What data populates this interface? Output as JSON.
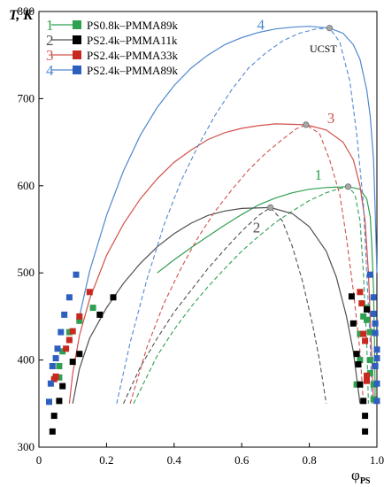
{
  "chart_data": {
    "type": "line",
    "ylabel": "T, K",
    "xlabel_main": "φ",
    "xlabel_sub": "PS",
    "xlim": [
      0,
      1.0
    ],
    "ylim": [
      300,
      800
    ],
    "xticks": [
      "0",
      "0.2",
      "0.4",
      "0.6",
      "0.8",
      "1.0"
    ],
    "yticks": [
      "300",
      "400",
      "500",
      "600",
      "700",
      "800"
    ],
    "annotation": "UCST",
    "legend_position": "top-left",
    "series": [
      {
        "name": "PS0.8k–PMMA89k",
        "number": "1",
        "color": "#2fa050",
        "marker_color": "#2fa050",
        "ucst": {
          "x": 0.915,
          "y": 599
        },
        "binodal": [
          [
            0.35,
            500
          ],
          [
            0.4,
            515
          ],
          [
            0.45,
            529
          ],
          [
            0.5,
            542
          ],
          [
            0.55,
            555
          ],
          [
            0.6,
            567
          ],
          [
            0.65,
            578
          ],
          [
            0.7,
            586
          ],
          [
            0.75,
            592
          ],
          [
            0.8,
            596
          ],
          [
            0.85,
            598
          ],
          [
            0.915,
            599
          ],
          [
            0.95,
            596
          ],
          [
            0.97,
            585
          ],
          [
            0.98,
            565
          ],
          [
            0.985,
            530
          ],
          [
            0.99,
            480
          ],
          [
            0.993,
            420
          ],
          [
            0.995,
            350
          ]
        ],
        "spinodal": [
          [
            0.28,
            350
          ],
          [
            0.35,
            405
          ],
          [
            0.4,
            435
          ],
          [
            0.45,
            461
          ],
          [
            0.5,
            484
          ],
          [
            0.55,
            505
          ],
          [
            0.6,
            525
          ],
          [
            0.65,
            542
          ],
          [
            0.7,
            558
          ],
          [
            0.75,
            571
          ],
          [
            0.8,
            583
          ],
          [
            0.85,
            592
          ],
          [
            0.89,
            597
          ],
          [
            0.915,
            599
          ],
          [
            0.935,
            590
          ],
          [
            0.95,
            560
          ],
          [
            0.96,
            500
          ],
          [
            0.97,
            420
          ],
          [
            0.975,
            350
          ]
        ],
        "points": [
          [
            0.06,
            380
          ],
          [
            0.06,
            393
          ],
          [
            0.07,
            410
          ],
          [
            0.09,
            432
          ],
          [
            0.12,
            445
          ],
          [
            0.16,
            460
          ],
          [
            0.94,
            372
          ],
          [
            0.95,
            400
          ],
          [
            0.95,
            430
          ],
          [
            0.96,
            450
          ],
          [
            0.97,
            460
          ],
          [
            0.97,
            446
          ],
          [
            0.98,
            432
          ],
          [
            0.98,
            400
          ],
          [
            0.98,
            385
          ],
          [
            0.99,
            372
          ],
          [
            0.99,
            355
          ]
        ]
      },
      {
        "name": "PS2.4k–PMMA11k",
        "number": "2",
        "color": "#505050",
        "marker_color": "#000000",
        "ucst": {
          "x": 0.685,
          "y": 575
        },
        "binodal": [
          [
            0.1,
            350
          ],
          [
            0.12,
            390
          ],
          [
            0.15,
            425
          ],
          [
            0.2,
            460
          ],
          [
            0.25,
            488
          ],
          [
            0.3,
            511
          ],
          [
            0.35,
            530
          ],
          [
            0.4,
            545
          ],
          [
            0.45,
            557
          ],
          [
            0.5,
            566
          ],
          [
            0.55,
            571
          ],
          [
            0.6,
            574
          ],
          [
            0.685,
            575
          ],
          [
            0.75,
            568
          ],
          [
            0.8,
            553
          ],
          [
            0.85,
            525
          ],
          [
            0.88,
            495
          ],
          [
            0.91,
            450
          ],
          [
            0.93,
            410
          ],
          [
            0.95,
            350
          ]
        ],
        "spinodal": [
          [
            0.25,
            350
          ],
          [
            0.3,
            392
          ],
          [
            0.35,
            425
          ],
          [
            0.4,
            455
          ],
          [
            0.45,
            480
          ],
          [
            0.5,
            505
          ],
          [
            0.55,
            527
          ],
          [
            0.6,
            548
          ],
          [
            0.65,
            566
          ],
          [
            0.685,
            575
          ],
          [
            0.72,
            560
          ],
          [
            0.75,
            530
          ],
          [
            0.78,
            490
          ],
          [
            0.81,
            440
          ],
          [
            0.83,
            400
          ],
          [
            0.85,
            350
          ]
        ],
        "points": [
          [
            0.04,
            318
          ],
          [
            0.045,
            336
          ],
          [
            0.06,
            353
          ],
          [
            0.07,
            370
          ],
          [
            0.1,
            398
          ],
          [
            0.12,
            407
          ],
          [
            0.18,
            452
          ],
          [
            0.22,
            472
          ],
          [
            0.925,
            473
          ],
          [
            0.93,
            442
          ],
          [
            0.94,
            407
          ],
          [
            0.945,
            395
          ],
          [
            0.95,
            372
          ],
          [
            0.96,
            353
          ],
          [
            0.965,
            336
          ],
          [
            0.965,
            318
          ],
          [
            0.97,
            458
          ]
        ]
      },
      {
        "name": "PS2.4k–PMMA33k",
        "number": "3",
        "color": "#d0504a",
        "marker_color": "#c8281e",
        "ucst": {
          "x": 0.79,
          "y": 670
        },
        "binodal": [
          [
            0.09,
            350
          ],
          [
            0.1,
            385
          ],
          [
            0.12,
            428
          ],
          [
            0.15,
            470
          ],
          [
            0.2,
            520
          ],
          [
            0.25,
            556
          ],
          [
            0.3,
            585
          ],
          [
            0.35,
            608
          ],
          [
            0.4,
            627
          ],
          [
            0.45,
            641
          ],
          [
            0.5,
            653
          ],
          [
            0.55,
            661
          ],
          [
            0.6,
            666
          ],
          [
            0.65,
            669
          ],
          [
            0.7,
            671
          ],
          [
            0.79,
            670
          ],
          [
            0.85,
            664
          ],
          [
            0.9,
            650
          ],
          [
            0.93,
            630
          ],
          [
            0.95,
            600
          ],
          [
            0.965,
            560
          ],
          [
            0.975,
            500
          ],
          [
            0.98,
            450
          ],
          [
            0.985,
            400
          ],
          [
            0.99,
            350
          ]
        ],
        "spinodal": [
          [
            0.27,
            350
          ],
          [
            0.32,
            415
          ],
          [
            0.37,
            465
          ],
          [
            0.42,
            505
          ],
          [
            0.47,
            540
          ],
          [
            0.52,
            570
          ],
          [
            0.57,
            595
          ],
          [
            0.62,
            618
          ],
          [
            0.67,
            637
          ],
          [
            0.72,
            653
          ],
          [
            0.76,
            665
          ],
          [
            0.79,
            670
          ],
          [
            0.83,
            660
          ],
          [
            0.86,
            630
          ],
          [
            0.89,
            590
          ],
          [
            0.91,
            540
          ],
          [
            0.93,
            480
          ],
          [
            0.95,
            410
          ],
          [
            0.96,
            350
          ]
        ],
        "points": [
          [
            0.045,
            378
          ],
          [
            0.05,
            381
          ],
          [
            0.08,
            413
          ],
          [
            0.09,
            423
          ],
          [
            0.1,
            433
          ],
          [
            0.12,
            450
          ],
          [
            0.15,
            478
          ],
          [
            0.95,
            478
          ],
          [
            0.955,
            465
          ],
          [
            0.96,
            430
          ],
          [
            0.965,
            422
          ],
          [
            0.97,
            382
          ],
          [
            0.97,
            376
          ]
        ]
      },
      {
        "name": "PS2.4k–PMMA89k",
        "number": "4",
        "color": "#4f88cf",
        "marker_color": "#2d5fbf",
        "ucst": {
          "x": 0.86,
          "y": 781
        },
        "binodal": [
          [
            0.12,
            450
          ],
          [
            0.15,
            502
          ],
          [
            0.2,
            566
          ],
          [
            0.25,
            617
          ],
          [
            0.3,
            658
          ],
          [
            0.35,
            690
          ],
          [
            0.4,
            715
          ],
          [
            0.45,
            735
          ],
          [
            0.5,
            750
          ],
          [
            0.55,
            762
          ],
          [
            0.6,
            770
          ],
          [
            0.65,
            776
          ],
          [
            0.7,
            780
          ],
          [
            0.75,
            782
          ],
          [
            0.8,
            783
          ],
          [
            0.86,
            781
          ],
          [
            0.9,
            775
          ],
          [
            0.93,
            762
          ],
          [
            0.95,
            745
          ],
          [
            0.97,
            710
          ],
          [
            0.98,
            680
          ],
          [
            0.99,
            630
          ],
          [
            0.995,
            570
          ],
          [
            1.0,
            500
          ]
        ],
        "spinodal": [
          [
            0.23,
            350
          ],
          [
            0.27,
            420
          ],
          [
            0.32,
            493
          ],
          [
            0.37,
            555
          ],
          [
            0.42,
            605
          ],
          [
            0.47,
            645
          ],
          [
            0.52,
            680
          ],
          [
            0.57,
            710
          ],
          [
            0.62,
            735
          ],
          [
            0.67,
            752
          ],
          [
            0.72,
            766
          ],
          [
            0.77,
            775
          ],
          [
            0.82,
            780
          ],
          [
            0.86,
            781
          ],
          [
            0.89,
            765
          ],
          [
            0.92,
            720
          ],
          [
            0.94,
            660
          ],
          [
            0.96,
            580
          ],
          [
            0.97,
            500
          ],
          [
            0.98,
            420
          ],
          [
            0.985,
            350
          ]
        ],
        "points": [
          [
            0.03,
            352
          ],
          [
            0.035,
            373
          ],
          [
            0.04,
            393
          ],
          [
            0.05,
            402
          ],
          [
            0.055,
            413
          ],
          [
            0.065,
            432
          ],
          [
            0.075,
            452
          ],
          [
            0.09,
            472
          ],
          [
            0.11,
            498
          ],
          [
            0.98,
            498
          ],
          [
            0.99,
            472
          ],
          [
            0.99,
            453
          ],
          [
            0.995,
            442
          ],
          [
            0.995,
            431
          ],
          [
            1.0,
            412
          ],
          [
            1.0,
            402
          ],
          [
            0.995,
            393
          ],
          [
            1.0,
            373
          ],
          [
            1.0,
            353
          ]
        ]
      }
    ]
  }
}
